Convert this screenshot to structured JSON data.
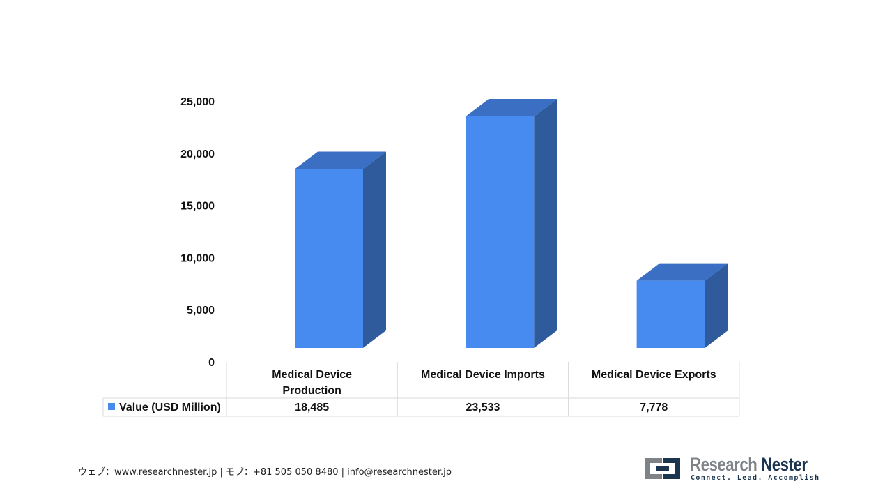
{
  "chart_data": {
    "type": "bar",
    "categories": [
      "Medical Device Production",
      "Medical Device Imports",
      "Medical Device Exports"
    ],
    "series": [
      {
        "name": "Value (USD Million)",
        "values": [
          18485,
          23533,
          7778
        ]
      }
    ],
    "value_labels": [
      "18,485",
      "23,533",
      "7,778"
    ],
    "y_ticks": [
      {
        "value": 0,
        "label": "0"
      },
      {
        "value": 5000,
        "label": "5,000"
      },
      {
        "value": 10000,
        "label": "10,000"
      },
      {
        "value": 15000,
        "label": "15,000"
      },
      {
        "value": 20000,
        "label": "20,000"
      },
      {
        "value": 25000,
        "label": "25,000"
      }
    ],
    "ylim": [
      0,
      25000
    ],
    "grid": false,
    "legend": "data-table-bottom",
    "style": "3d-column",
    "colors": {
      "front": "#478bf0",
      "top": "#3a6fc4",
      "side": "#2f5a9c"
    }
  },
  "footer": {
    "contact": "ウェブ：www.researchnester.jp | モブ：+81 505 050 8480 | info@researchnester.jp"
  },
  "logo": {
    "name_part1": "Research",
    "name_part2": "Nester",
    "tagline": "Connect. Lead. Accomplish",
    "icon": "research-nester-logo-icon"
  }
}
